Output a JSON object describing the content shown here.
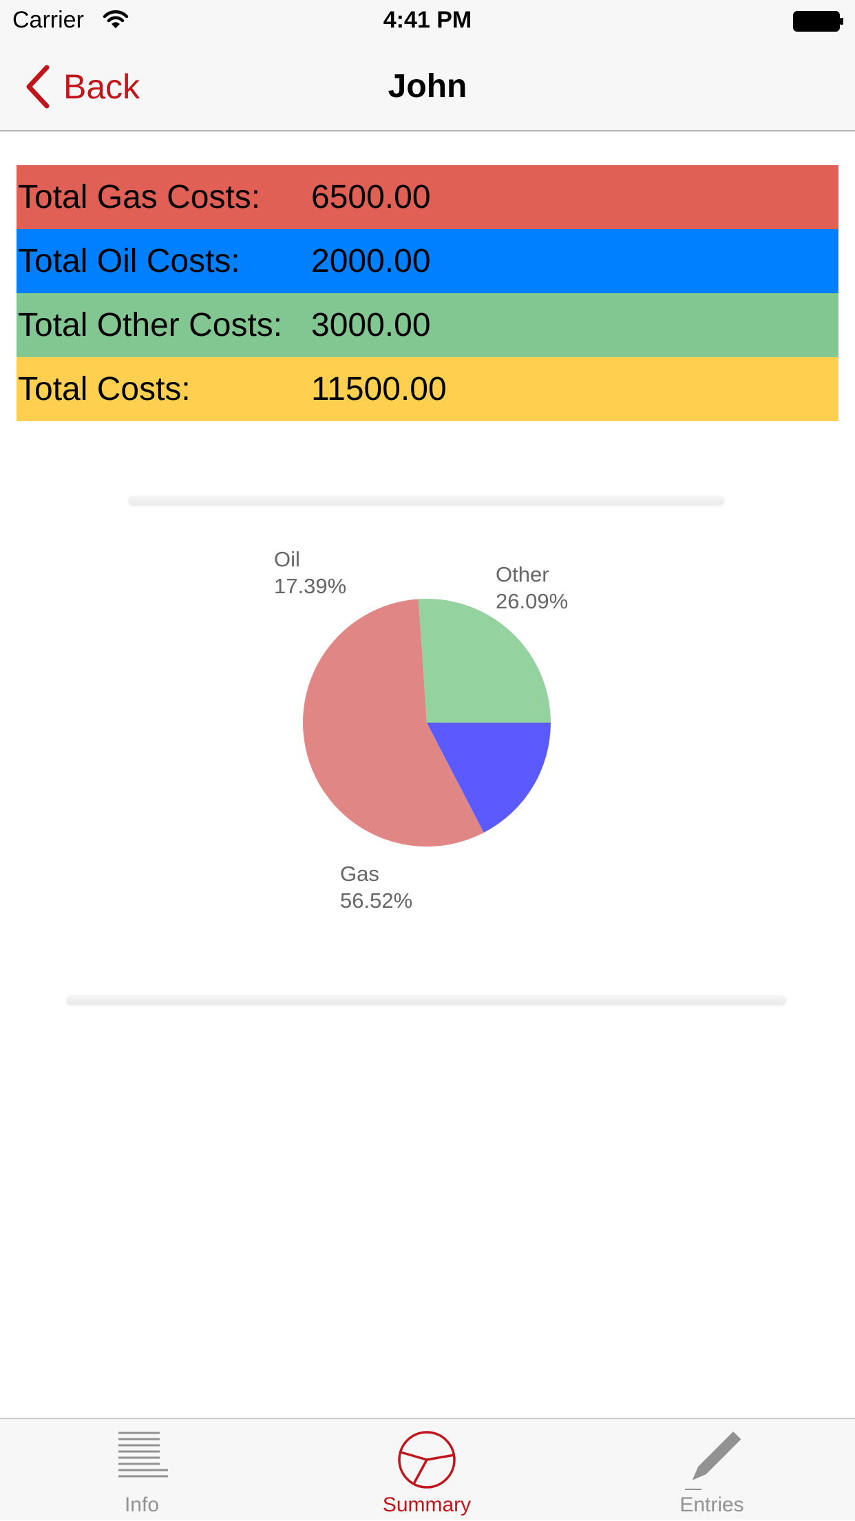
{
  "status_bar": {
    "carrier": "Carrier",
    "time": "4:41 PM"
  },
  "nav": {
    "back_label": "Back",
    "title": "John"
  },
  "totals": [
    {
      "label": "Total Gas Costs:",
      "value": "6500.00",
      "color": "#e06055"
    },
    {
      "label": "Total Oil Costs:",
      "value": "2000.00",
      "color": "#0080ff"
    },
    {
      "label": "Total Other Costs:",
      "value": "3000.00",
      "color": "#82c792"
    },
    {
      "label": "Total Costs:",
      "value": "11500.00",
      "color": "#ffcf50"
    }
  ],
  "chart_data": {
    "type": "pie",
    "slices": [
      {
        "label": "Other",
        "percent_label": "26.09%",
        "value": 26.09,
        "color": "#94d2a0"
      },
      {
        "label": "Gas",
        "percent_label": "56.52%",
        "value": 56.52,
        "color": "#e08785"
      },
      {
        "label": "Oil",
        "percent_label": "17.39%",
        "value": 17.39,
        "color": "#5a5aff"
      }
    ],
    "title": "",
    "legend": "none"
  },
  "tabs": [
    {
      "label": "Info",
      "icon": "list-icon",
      "active": false
    },
    {
      "label": "Summary",
      "icon": "pie-chart-icon",
      "active": true
    },
    {
      "label": "Entries",
      "icon": "pencil-icon",
      "active": false
    }
  ],
  "colors": {
    "accent": "#c0151b",
    "tab_inactive": "#929292"
  }
}
